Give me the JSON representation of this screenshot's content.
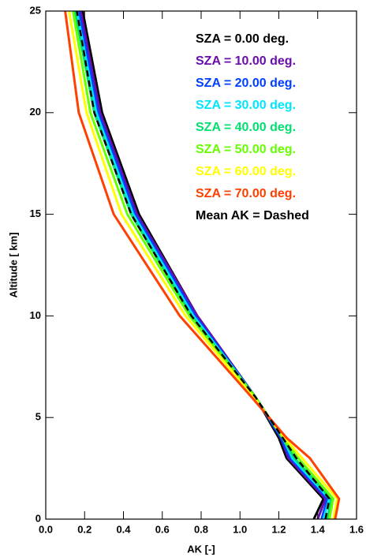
{
  "chart_data": {
    "type": "line",
    "xlabel": "AK [-]",
    "ylabel": "Altitude [ km]",
    "y": [
      0,
      1,
      3,
      4,
      6,
      10,
      15,
      20,
      25
    ],
    "series": [
      {
        "name": "SZA = 0.00 deg.",
        "color": "#000000",
        "values": [
          1.38,
          1.43,
          1.24,
          1.2,
          1.08,
          0.78,
          0.48,
          0.29,
          0.19
        ]
      },
      {
        "name": "SZA = 10.00 deg.",
        "color": "#6a0dad",
        "values": [
          1.4,
          1.44,
          1.25,
          1.21,
          1.08,
          0.78,
          0.47,
          0.28,
          0.18
        ]
      },
      {
        "name": "SZA = 20.00 deg.",
        "color": "#0040ff",
        "values": [
          1.42,
          1.45,
          1.26,
          1.21,
          1.08,
          0.77,
          0.46,
          0.27,
          0.17
        ]
      },
      {
        "name": "SZA = 30.00 deg.",
        "color": "#00e5ff",
        "values": [
          1.43,
          1.46,
          1.27,
          1.22,
          1.08,
          0.76,
          0.45,
          0.26,
          0.16
        ]
      },
      {
        "name": "SZA = 40.00 deg.",
        "color": "#00e070",
        "values": [
          1.45,
          1.47,
          1.28,
          1.22,
          1.08,
          0.75,
          0.44,
          0.25,
          0.15
        ]
      },
      {
        "name": "SZA = 50.00 deg.",
        "color": "#66ff00",
        "values": [
          1.46,
          1.48,
          1.3,
          1.22,
          1.08,
          0.74,
          0.42,
          0.23,
          0.14
        ]
      },
      {
        "name": "SZA = 60.00 deg.",
        "color": "#ffff00",
        "values": [
          1.48,
          1.5,
          1.32,
          1.23,
          1.07,
          0.72,
          0.39,
          0.21,
          0.12
        ]
      },
      {
        "name": "SZA = 70.00 deg.",
        "color": "#ff4000",
        "values": [
          1.49,
          1.51,
          1.36,
          1.24,
          1.06,
          0.69,
          0.35,
          0.17,
          0.1
        ]
      },
      {
        "name": "Mean AK = Dashed",
        "color": "#000000",
        "dashed": true,
        "values": [
          1.44,
          1.46,
          1.29,
          1.22,
          1.08,
          0.75,
          0.44,
          0.25,
          0.16
        ]
      }
    ],
    "xlim": [
      0,
      1.6
    ],
    "xticks": [
      {
        "value": 0,
        "label": "0.0"
      },
      0.2,
      0.4,
      0.6,
      0.8,
      {
        "value": 1,
        "label": "1.0"
      },
      1.2,
      1.4,
      1.6
    ],
    "ylim": [
      0,
      25
    ],
    "yticks": [
      0,
      5,
      10,
      15,
      20,
      25
    ]
  }
}
